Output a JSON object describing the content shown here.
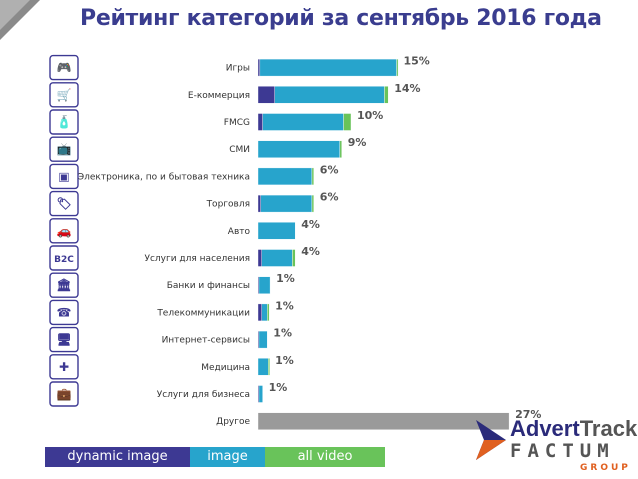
{
  "title": "Рейтинг категорий за сентябрь 2016 года",
  "legend": {
    "dynamic_image": "dynamic image",
    "image": "image",
    "all_video": "all video"
  },
  "colors": {
    "dynamic_image": "#3d3993",
    "image": "#27a4cc",
    "all_video": "#69c35a",
    "other": "#9a9a9a",
    "title": "#3a3d8f",
    "value_label": "#555555"
  },
  "logo": {
    "advert": "Advert",
    "track": "Track",
    "factum": "FACTUM",
    "group": "GROUP"
  },
  "chart_data": {
    "type": "bar",
    "orientation": "horizontal",
    "stacked": true,
    "title": "Рейтинг категорий за сентябрь 2016 года",
    "categories": [
      "Игры",
      "E-коммерция",
      "FMCG",
      "СМИ",
      "Электроника, по и бытовая техника",
      "Торговля",
      "Авто",
      "Услуги для населения",
      "Банки и финансы",
      "Телекоммуникации",
      "Интернет-сервисы",
      "Медицина",
      "Услуги для бизнеса",
      "Другое"
    ],
    "icons": [
      "gamepad-icon",
      "shopping-cart-icon",
      "fmcg-products-icon",
      "tv-icon",
      "washing-machine-icon",
      "price-tag-icon",
      "car-icon",
      "b2c-icon",
      "bank-icon",
      "phone-icon",
      "monitor-icon",
      "medical-icon",
      "briefcase-icon",
      ""
    ],
    "value_labels": [
      "15%",
      "14%",
      "10%",
      "9%",
      "6%",
      "6%",
      "4%",
      "4%",
      "1%",
      "1%",
      "1%",
      "1%",
      "1%",
      "27%"
    ],
    "series": [
      {
        "name": "dynamic image",
        "values": [
          0.2,
          1.8,
          0.5,
          0,
          0,
          0.3,
          0,
          0.4,
          0.1,
          0.4,
          0.1,
          0,
          0.1,
          0
        ]
      },
      {
        "name": "image",
        "values": [
          14.7,
          11.8,
          8.7,
          8.8,
          5.8,
          5.5,
          4.0,
          3.3,
          1.2,
          0.6,
          0.9,
          1.1,
          0.4,
          0
        ]
      },
      {
        "name": "all video",
        "values": [
          0.1,
          0.4,
          0.8,
          0.2,
          0.2,
          0.2,
          0.0,
          0.3,
          0,
          0.2,
          0,
          0.1,
          0,
          0
        ]
      },
      {
        "name": "other",
        "values": [
          0,
          0,
          0,
          0,
          0,
          0,
          0,
          0,
          0,
          0,
          0,
          0,
          0,
          27
        ]
      }
    ],
    "xlim": [
      0,
      27
    ],
    "grid": false,
    "legend_position": "bottom-left"
  }
}
